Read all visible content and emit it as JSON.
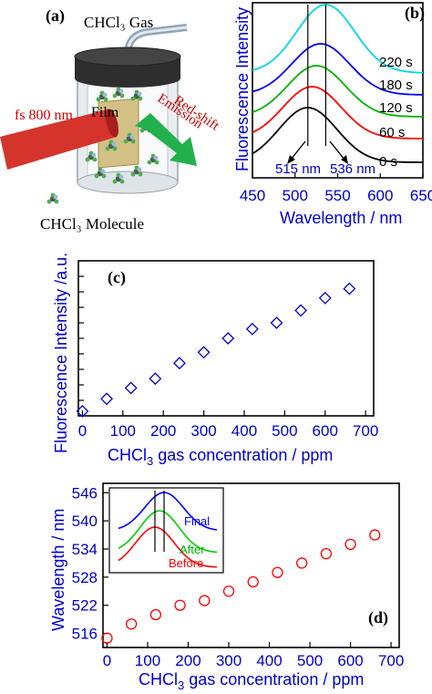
{
  "panel_a": {
    "label": "(a)",
    "gas_label": "CHCl₃ Gas",
    "laser_label": "fs 800 nm",
    "film_label": "Film",
    "emission_label": "Emission",
    "redshift_label": "Red-shift",
    "molecule_label": "CHCl₃ Molecule"
  },
  "chart_data": [
    {
      "panel": "(b)",
      "type": "line",
      "xlabel": "Wavelength / nm",
      "ylabel": "Fluorescence Intensity",
      "xlim": [
        450,
        650
      ],
      "xticks": [
        450,
        500,
        550,
        600,
        650
      ],
      "series": [
        {
          "name": "0 s",
          "color": "#000000",
          "peak": 515
        },
        {
          "name": "60 s",
          "color": "#ff0000",
          "peak": 520
        },
        {
          "name": "120 s",
          "color": "#00b000",
          "peak": 525
        },
        {
          "name": "180 s",
          "color": "#0000ff",
          "peak": 530
        },
        {
          "name": "220 s",
          "color": "#00d5e8",
          "peak": 536
        }
      ],
      "annotations": [
        "515 nm",
        "536 nm"
      ],
      "markers_x": [
        515,
        536
      ]
    },
    {
      "panel": "(c)",
      "type": "scatter",
      "marker": "diamond",
      "color": "#0000cc",
      "xlabel": "CHCl3 gas concentration / ppm",
      "ylabel": "Fluorescence Intensity /a.u.",
      "xlim": [
        -10,
        720
      ],
      "xticks": [
        0,
        100,
        200,
        300,
        400,
        500,
        600,
        700
      ],
      "x": [
        0,
        60,
        120,
        180,
        240,
        300,
        360,
        420,
        480,
        540,
        600,
        660
      ],
      "y": [
        0.03,
        0.11,
        0.18,
        0.24,
        0.34,
        0.41,
        0.5,
        0.56,
        0.6,
        0.68,
        0.76,
        0.82
      ],
      "ylim": [
        0,
        1
      ]
    },
    {
      "panel": "(d)",
      "type": "scatter",
      "marker": "circle",
      "color": "#ff0000",
      "xlabel": "CHCl3 gas concentration / ppm",
      "ylabel": "Wavelength / nm",
      "xlim": [
        -10,
        720
      ],
      "ylim": [
        513,
        548
      ],
      "xticks": [
        0,
        100,
        200,
        300,
        400,
        500,
        600,
        700
      ],
      "yticks": [
        516,
        522,
        528,
        534,
        540,
        546
      ],
      "x": [
        0,
        60,
        120,
        180,
        240,
        300,
        360,
        420,
        480,
        540,
        600,
        660
      ],
      "y": [
        515,
        518,
        520,
        522,
        523,
        525,
        527,
        529,
        531,
        533,
        535,
        537
      ],
      "inset": {
        "labels": [
          "Final",
          "After",
          "Before"
        ],
        "colors": [
          "#0000ff",
          "#00d000",
          "#ff0000"
        ]
      }
    }
  ],
  "text": {
    "xlabel_c_prefix": "CHCl",
    "xlabel_c_sub": "3",
    "xlabel_c_suffix": " gas concentration / ppm"
  }
}
